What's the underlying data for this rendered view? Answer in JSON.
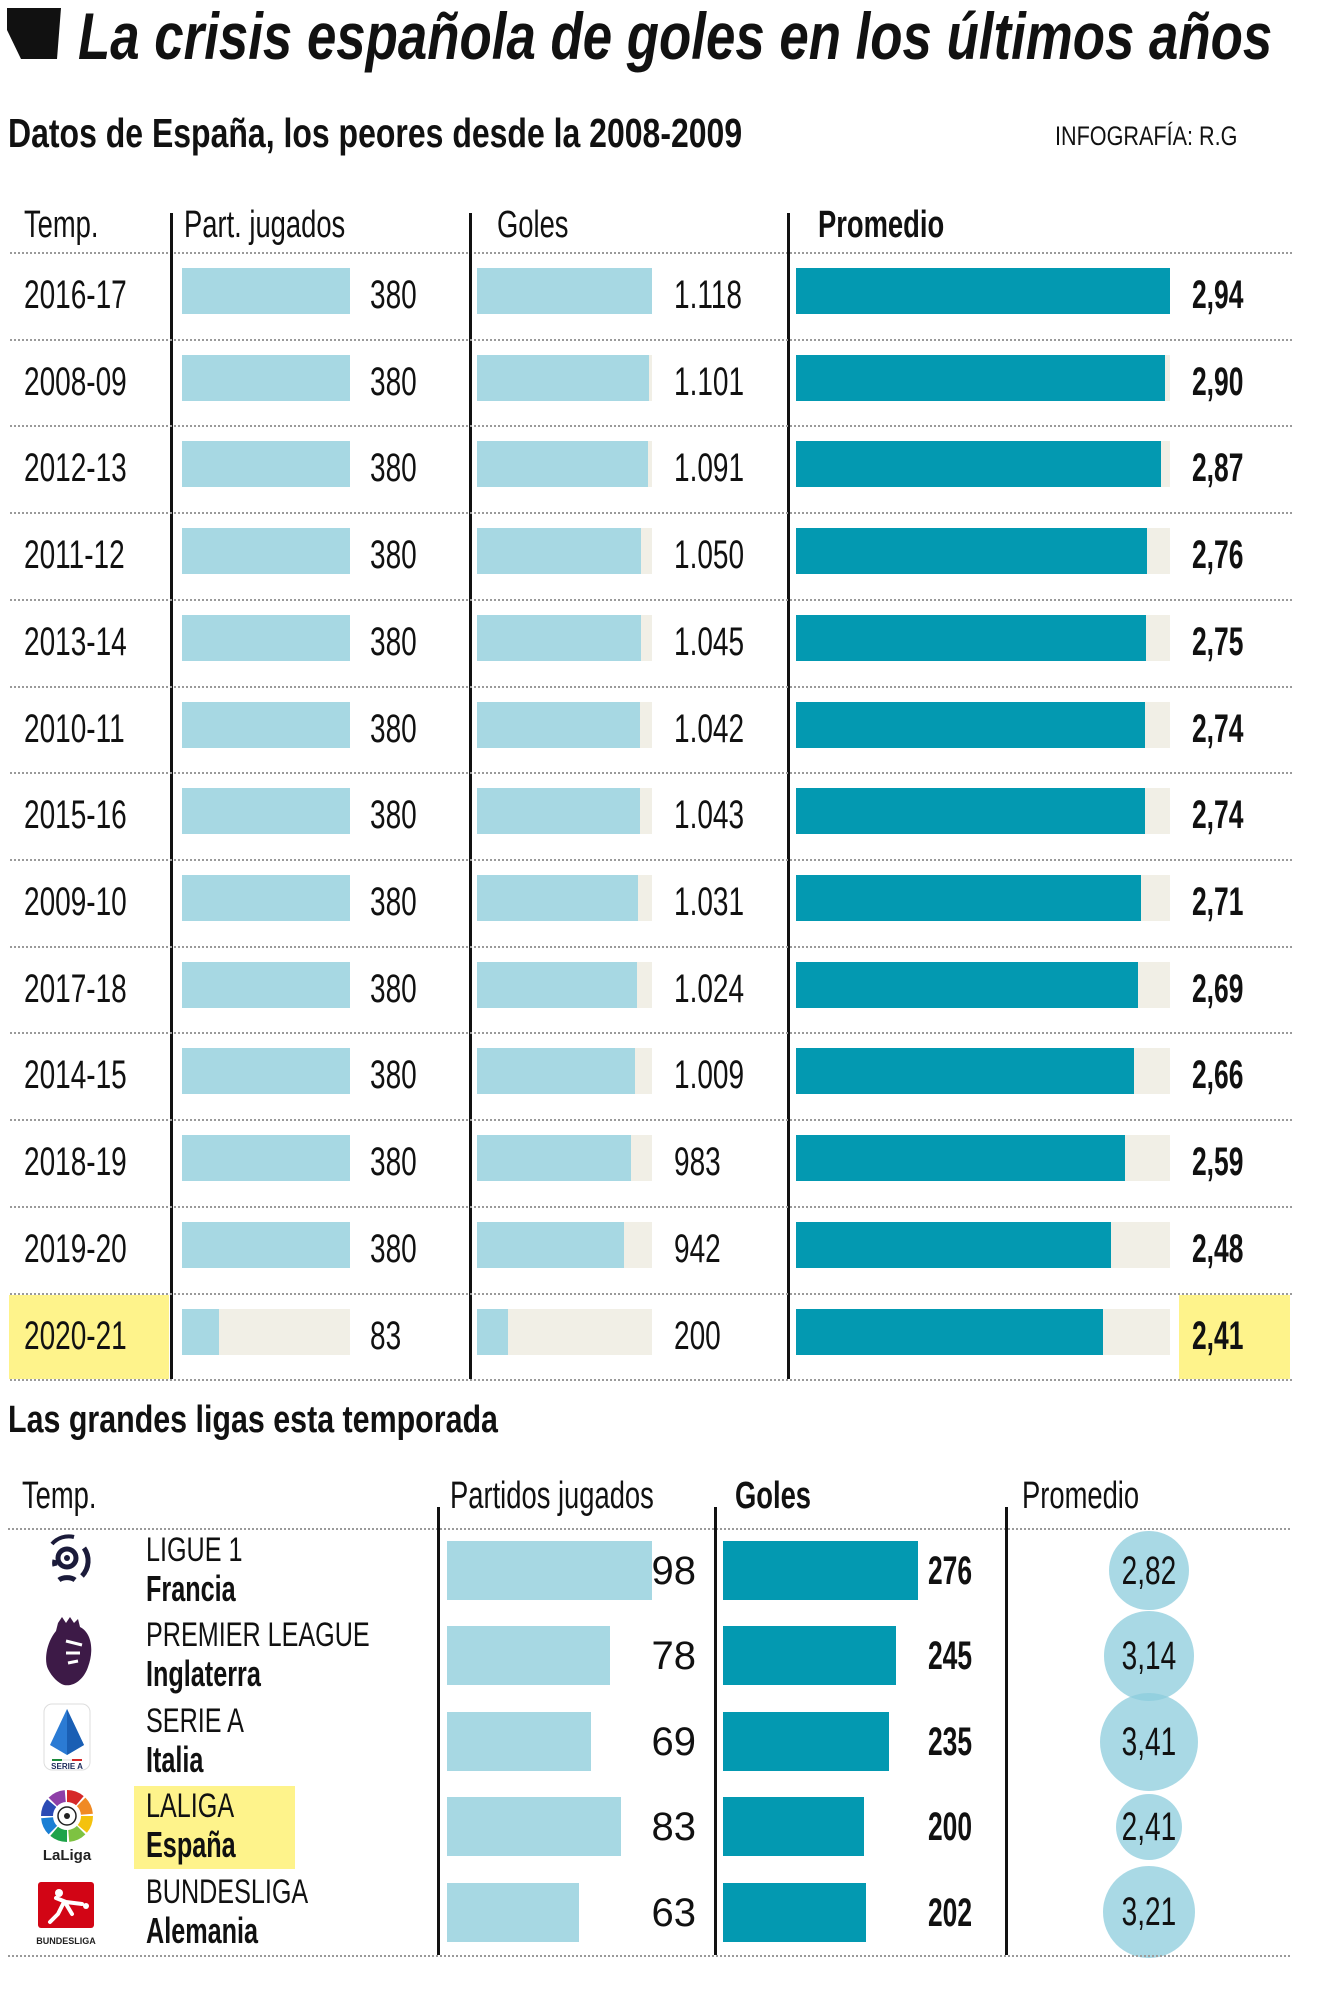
{
  "title": "La crisis española de goles en los últimos años",
  "subtitle": "Datos de España, los peores desde la 2008-2009",
  "credit": "INFOGRAFÍA: R.G",
  "colors": {
    "light_bar": "#a7d8e3",
    "dark_bar": "#0399b1",
    "track": "#f1efe6",
    "highlight": "#fef38b",
    "bubble": "#8cccdc"
  },
  "chart_data": [
    {
      "type": "table",
      "title": "Datos de España, los peores desde la 2008-2009",
      "columns": [
        "Temp.",
        "Part. jugados",
        "Goles",
        "Promedio"
      ],
      "highlight_row": "2020-21",
      "rows": [
        {
          "season": "2016-17",
          "matches": 380,
          "matches_label": "380",
          "goals": 1118,
          "goals_label": "1.118",
          "avg": 2.94,
          "avg_label": "2,94"
        },
        {
          "season": "2008-09",
          "matches": 380,
          "matches_label": "380",
          "goals": 1101,
          "goals_label": "1.101",
          "avg": 2.9,
          "avg_label": "2,90"
        },
        {
          "season": "2012-13",
          "matches": 380,
          "matches_label": "380",
          "goals": 1091,
          "goals_label": "1.091",
          "avg": 2.87,
          "avg_label": "2,87"
        },
        {
          "season": "2011-12",
          "matches": 380,
          "matches_label": "380",
          "goals": 1050,
          "goals_label": "1.050",
          "avg": 2.76,
          "avg_label": "2,76"
        },
        {
          "season": "2013-14",
          "matches": 380,
          "matches_label": "380",
          "goals": 1045,
          "goals_label": "1.045",
          "avg": 2.75,
          "avg_label": "2,75"
        },
        {
          "season": "2010-11",
          "matches": 380,
          "matches_label": "380",
          "goals": 1042,
          "goals_label": "1.042",
          "avg": 2.74,
          "avg_label": "2,74"
        },
        {
          "season": "2015-16",
          "matches": 380,
          "matches_label": "380",
          "goals": 1043,
          "goals_label": "1.043",
          "avg": 2.74,
          "avg_label": "2,74"
        },
        {
          "season": "2009-10",
          "matches": 380,
          "matches_label": "380",
          "goals": 1031,
          "goals_label": "1.031",
          "avg": 2.71,
          "avg_label": "2,71"
        },
        {
          "season": "2017-18",
          "matches": 380,
          "matches_label": "380",
          "goals": 1024,
          "goals_label": "1.024",
          "avg": 2.69,
          "avg_label": "2,69"
        },
        {
          "season": "2014-15",
          "matches": 380,
          "matches_label": "380",
          "goals": 1009,
          "goals_label": "1.009",
          "avg": 2.66,
          "avg_label": "2,66"
        },
        {
          "season": "2018-19",
          "matches": 380,
          "matches_label": "380",
          "goals": 983,
          "goals_label": "983",
          "avg": 2.59,
          "avg_label": "2,59"
        },
        {
          "season": "2019-20",
          "matches": 380,
          "matches_label": "380",
          "goals": 942,
          "goals_label": "942",
          "avg": 2.48,
          "avg_label": "2,48"
        },
        {
          "season": "2020-21",
          "matches": 83,
          "matches_label": "83",
          "goals": 200,
          "goals_label": "200",
          "avg": 2.41,
          "avg_label": "2,41"
        }
      ],
      "scales": {
        "matches_max": 380,
        "goals_max": 1118,
        "avg_max": 2.94
      }
    },
    {
      "type": "table",
      "title": "Las grandes ligas esta temporada",
      "columns": [
        "Temp.",
        "Partidos jugados",
        "Goles",
        "Promedio"
      ],
      "highlight_row": "LALIGA",
      "rows": [
        {
          "league": "LIGUE 1",
          "country": "Francia",
          "logo": "ligue1-logo",
          "logo_text": "LIGUE 1",
          "matches": 98,
          "goals": 276,
          "avg": 2.82,
          "avg_label": "2,82"
        },
        {
          "league": "PREMIER LEAGUE",
          "country": "Inglaterra",
          "logo": "premier-league-logo",
          "logo_text": "",
          "matches": 78,
          "goals": 245,
          "avg": 3.14,
          "avg_label": "3,14"
        },
        {
          "league": "SERIE A",
          "country": "Italia",
          "logo": "serie-a-logo",
          "logo_text": "SERIE A",
          "matches": 69,
          "goals": 235,
          "avg": 3.41,
          "avg_label": "3,41"
        },
        {
          "league": "LALIGA",
          "country": "España",
          "logo": "laliga-logo",
          "logo_text": "LaLiga",
          "matches": 83,
          "goals": 200,
          "avg": 2.41,
          "avg_label": "2,41"
        },
        {
          "league": "BUNDESLIGA",
          "country": "Alemania",
          "logo": "bundesliga-logo",
          "logo_text": "BUNDESLIGA",
          "matches": 63,
          "goals": 202,
          "avg": 3.21,
          "avg_label": "3,21"
        }
      ],
      "scales": {
        "matches_max": 98,
        "goals_max": 276,
        "avg_max": 3.41
      }
    }
  ]
}
